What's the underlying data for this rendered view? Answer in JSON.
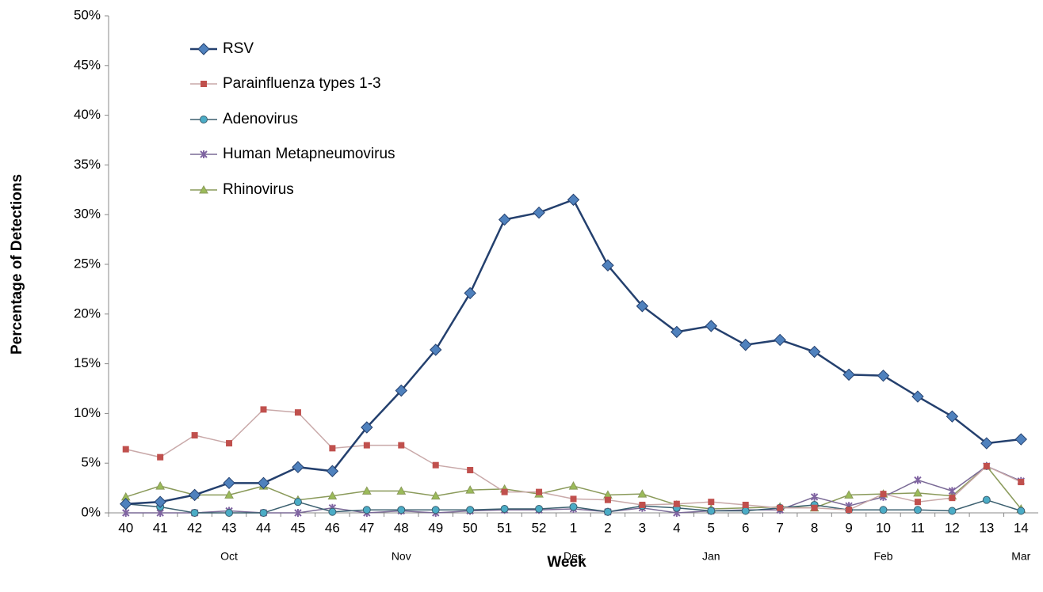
{
  "chart_data": {
    "type": "line",
    "x_label": "Week",
    "y_label": "Percentage of Detections",
    "categories": [
      "40",
      "41",
      "42",
      "43",
      "44",
      "45",
      "46",
      "47",
      "48",
      "49",
      "50",
      "51",
      "52",
      "1",
      "2",
      "3",
      "4",
      "5",
      "6",
      "7",
      "8",
      "9",
      "10",
      "11",
      "12",
      "13",
      "14"
    ],
    "month_labels": [
      null,
      null,
      null,
      "Oct",
      null,
      null,
      null,
      null,
      "Nov",
      null,
      null,
      null,
      null,
      "Dec",
      null,
      null,
      null,
      "Jan",
      null,
      null,
      null,
      null,
      "Feb",
      null,
      null,
      null,
      "Mar"
    ],
    "ylim": [
      0,
      50
    ],
    "yticks": [
      {
        "value": 0,
        "label": "0%"
      },
      {
        "value": 5,
        "label": "5%"
      },
      {
        "value": 10,
        "label": "10%"
      },
      {
        "value": 15,
        "label": "15%"
      },
      {
        "value": 20,
        "label": "20%"
      },
      {
        "value": 25,
        "label": "25%"
      },
      {
        "value": 30,
        "label": "30%"
      },
      {
        "value": 35,
        "label": "35%"
      },
      {
        "value": 40,
        "label": "40%"
      },
      {
        "value": 45,
        "label": "45%"
      },
      {
        "value": 50,
        "label": "50%"
      }
    ],
    "series": [
      {
        "name": "RSV",
        "color": "#24406e",
        "marker_color": "#4f81bd",
        "marker": "diamond",
        "values": [
          0.9,
          1.1,
          1.8,
          3.0,
          3.0,
          4.6,
          4.2,
          8.6,
          12.3,
          16.4,
          22.1,
          29.5,
          30.2,
          31.5,
          24.9,
          20.8,
          18.2,
          18.8,
          16.9,
          17.4,
          16.2,
          13.9,
          13.8,
          11.7,
          9.7,
          7.0,
          7.4
        ]
      },
      {
        "name": "Parainfluenza types 1-3",
        "color": "#c9a9a9",
        "marker_color": "#c0504d",
        "marker": "square",
        "values": [
          6.4,
          5.6,
          7.8,
          7.0,
          10.4,
          10.1,
          6.5,
          6.8,
          6.8,
          4.8,
          4.3,
          2.1,
          2.1,
          1.4,
          1.3,
          0.8,
          0.9,
          1.1,
          0.8,
          0.5,
          0.5,
          0.3,
          1.9,
          1.1,
          1.5,
          4.7,
          3.1
        ]
      },
      {
        "name": "Adenovirus",
        "color": "#3b5f6f",
        "marker_color": "#4bacc6",
        "marker": "circle",
        "values": [
          0.9,
          0.6,
          0.0,
          0.0,
          0.0,
          1.1,
          0.1,
          0.3,
          0.3,
          0.3,
          0.3,
          0.4,
          0.4,
          0.6,
          0.1,
          0.7,
          0.5,
          0.2,
          0.2,
          0.5,
          0.8,
          0.3,
          0.3,
          0.3,
          0.2,
          1.3,
          0.2
        ]
      },
      {
        "name": "Human Metapneumovirus",
        "color": "#7a6a96",
        "marker_color": "#8064a2",
        "marker": "star",
        "values": [
          0,
          0,
          0,
          0.2,
          0,
          0,
          0.5,
          0,
          0.2,
          0,
          0.2,
          0.3,
          0.3,
          0.4,
          0.1,
          0.5,
          0,
          0.2,
          0.3,
          0.3,
          1.6,
          0.7,
          1.6,
          3.3,
          2.2,
          4.7,
          3.2
        ]
      },
      {
        "name": "Rhinovirus",
        "color": "#8a9a5a",
        "marker_color": "#9bbb59",
        "marker": "triangle",
        "values": [
          1.6,
          2.7,
          1.8,
          1.8,
          2.7,
          1.3,
          1.7,
          2.2,
          2.2,
          1.7,
          2.3,
          2.4,
          1.9,
          2.7,
          1.8,
          1.9,
          0.8,
          0.4,
          0.5,
          0.6,
          0.5,
          1.8,
          1.9,
          2.0,
          1.7,
          4.7,
          0.4
        ]
      }
    ]
  }
}
